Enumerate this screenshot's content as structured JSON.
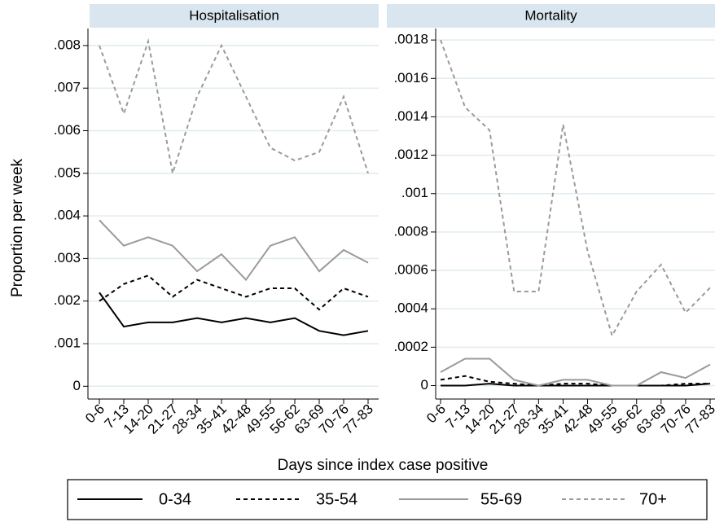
{
  "chart_data": [
    {
      "type": "line",
      "title": "Hospitalisation",
      "ylabel": "Proportion per week",
      "xlabel": "Days since index case positive",
      "categories": [
        "0-6",
        "7-13",
        "14-20",
        "21-27",
        "28-34",
        "35-41",
        "42-48",
        "49-55",
        "56-62",
        "63-69",
        "70-76",
        "77-83"
      ],
      "ylim": [
        -0.0003,
        0.0084
      ],
      "yticks": [
        {
          "value": 0.008,
          "label": ".008"
        },
        {
          "value": 0.007,
          "label": ".007"
        },
        {
          "value": 0.006,
          "label": ".006"
        },
        {
          "value": 0.005,
          "label": ".005"
        },
        {
          "value": 0.004,
          "label": ".004"
        },
        {
          "value": 0.003,
          "label": ".003"
        },
        {
          "value": 0.002,
          "label": ".002"
        },
        {
          "value": 0.001,
          "label": ".001"
        },
        0
      ],
      "grid": true,
      "series": [
        {
          "name": "0-34",
          "color": "#000000",
          "dash": "none",
          "values": [
            0.0022,
            0.0014,
            0.0015,
            0.0015,
            0.0016,
            0.0015,
            0.0016,
            0.0015,
            0.0016,
            0.0013,
            0.0012,
            0.0013
          ]
        },
        {
          "name": "35-54",
          "color": "#000000",
          "dash": "5,4",
          "values": [
            0.002,
            0.0024,
            0.0026,
            0.0021,
            0.0025,
            0.0023,
            0.0021,
            0.0023,
            0.0023,
            0.0018,
            0.0023,
            0.0021
          ]
        },
        {
          "name": "55-69",
          "color": "#9a9a9a",
          "dash": "none",
          "values": [
            0.0039,
            0.0033,
            0.0035,
            0.0033,
            0.0027,
            0.0031,
            0.0025,
            0.0033,
            0.0035,
            0.0027,
            0.0032,
            0.0029
          ]
        },
        {
          "name": "70+",
          "color": "#9a9a9a",
          "dash": "5,4",
          "values": [
            0.008,
            0.0064,
            0.0081,
            0.005,
            0.0068,
            0.008,
            0.0068,
            0.0056,
            0.0053,
            0.0055,
            0.0068,
            0.005
          ]
        }
      ]
    },
    {
      "type": "line",
      "title": "Mortality",
      "categories": [
        "0-6",
        "7-13",
        "14-20",
        "21-27",
        "28-34",
        "35-41",
        "42-48",
        "49-55",
        "56-62",
        "63-69",
        "70-76",
        "77-83"
      ],
      "ylim": [
        -7e-05,
        0.00186
      ],
      "yticks": [
        {
          "value": 0.0018,
          "label": ".0018"
        },
        {
          "value": 0.0016,
          "label": ".0016"
        },
        {
          "value": 0.0014,
          "label": ".0014"
        },
        {
          "value": 0.0012,
          "label": ".0012"
        },
        {
          "value": 0.001,
          "label": ".001"
        },
        {
          "value": 0.0008,
          "label": ".0008"
        },
        {
          "value": 0.0006,
          "label": ".0006"
        },
        {
          "value": 0.0004,
          "label": ".0004"
        },
        {
          "value": 0.0002,
          "label": ".0002"
        },
        0
      ],
      "grid": true,
      "series": [
        {
          "color": "#000000",
          "dash": "none",
          "values": [
            0,
            0,
            1e-05,
            0,
            0,
            0,
            0,
            0,
            0,
            0,
            0,
            1e-05
          ]
        },
        {
          "color": "#000000",
          "dash": "5,4",
          "values": [
            3e-05,
            5e-05,
            2e-05,
            1e-05,
            0,
            1e-05,
            1e-05,
            0,
            0,
            0,
            1e-05,
            1e-05
          ]
        },
        {
          "color": "#9a9a9a",
          "dash": "none",
          "values": [
            7e-05,
            0.00014,
            0.00014,
            3e-05,
            0,
            3e-05,
            3e-05,
            0,
            0,
            7e-05,
            4e-05,
            0.00011
          ]
        },
        {
          "color": "#9a9a9a",
          "dash": "5,4",
          "values": [
            0.0018,
            0.00145,
            0.00133,
            0.00049,
            0.00049,
            0.00136,
            0.0007,
            0.00026,
            0.00049,
            0.00063,
            0.00038,
            0.00051
          ]
        }
      ]
    }
  ]
}
